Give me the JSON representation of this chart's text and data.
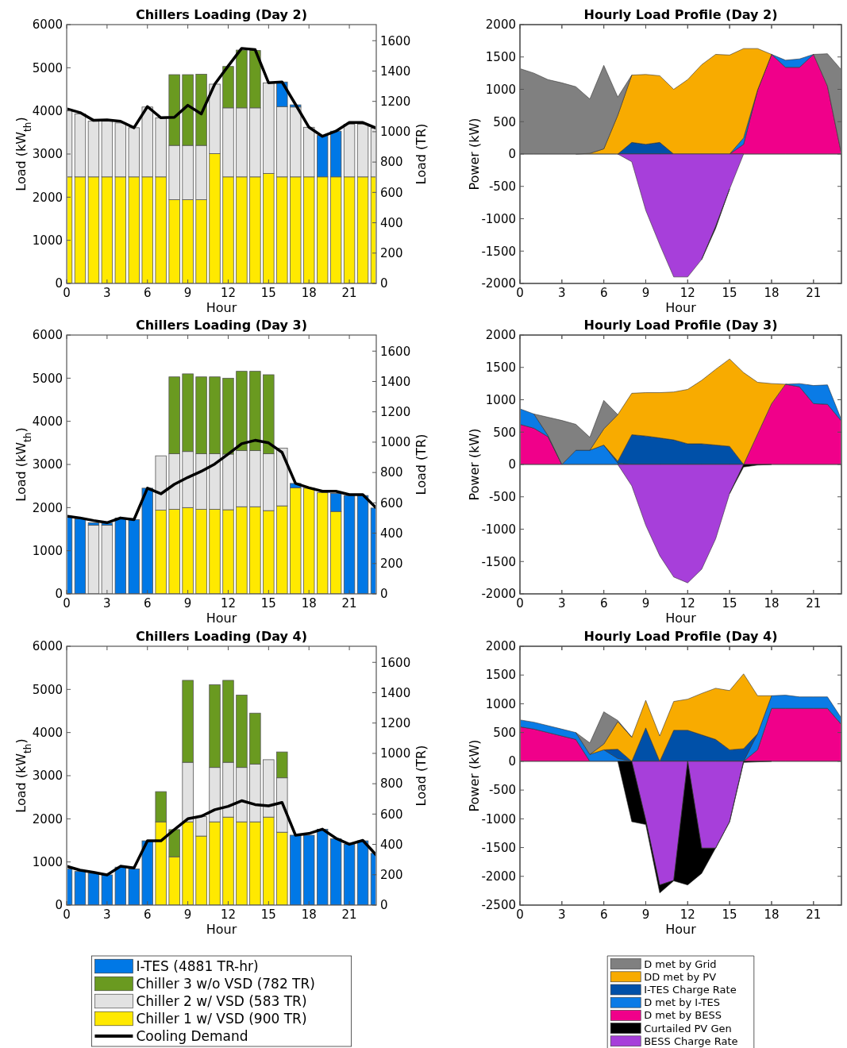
{
  "chart_data": [
    {
      "type": "bar",
      "title": "Chillers Loading (Day 2)",
      "xlabel": "Hour",
      "ylabel": "Load (kW$_{th}$)",
      "y2label": "Load (TR)",
      "stacked": true,
      "x": [
        0,
        1,
        2,
        3,
        4,
        5,
        6,
        7,
        8,
        9,
        10,
        11,
        12,
        13,
        14,
        15,
        16,
        17,
        18,
        19,
        20,
        21,
        22,
        23
      ],
      "xlim": [
        0,
        23
      ],
      "xticks": [
        0,
        3,
        6,
        9,
        12,
        15,
        18,
        21
      ],
      "ylim": [
        0,
        6000
      ],
      "yticks": [
        0,
        1000,
        2000,
        3000,
        4000,
        5000,
        6000
      ],
      "y2lim": [
        0,
        1706
      ],
      "y2ticks": [
        0,
        200,
        400,
        600,
        800,
        1000,
        1200,
        1400,
        1600
      ],
      "series": [
        {
          "color": "#ffe900",
          "values": [
            2470,
            2470,
            2470,
            2470,
            2470,
            2470,
            2470,
            2470,
            1940,
            1940,
            1940,
            3010,
            2470,
            2470,
            2470,
            2550,
            2470,
            2470,
            2470,
            2470,
            2470,
            2470,
            2470,
            2470
          ]
        },
        {
          "color": "#e2e2e2",
          "values": [
            1550,
            1460,
            1290,
            1290,
            1250,
            1140,
            1620,
            1370,
            1260,
            1260,
            1260,
            1610,
            1600,
            1600,
            1600,
            2100,
            1630,
            1620,
            1150,
            null,
            null,
            1220,
            1220,
            1130
          ]
        },
        {
          "color": "#6a9a20",
          "values": [
            null,
            null,
            null,
            null,
            null,
            null,
            null,
            null,
            1640,
            1640,
            1650,
            null,
            960,
            1340,
            1330,
            null,
            null,
            null,
            null,
            null,
            null,
            null,
            null,
            null
          ]
        },
        {
          "color": "#0078e6",
          "values": [
            null,
            null,
            null,
            null,
            null,
            null,
            null,
            null,
            null,
            null,
            null,
            null,
            null,
            null,
            null,
            null,
            570,
            50,
            null,
            960,
            1060,
            null,
            null,
            null
          ]
        },
        {
          "type": "line",
          "color": "#000000",
          "values": [
            4050,
            3960,
            3780,
            3790,
            3760,
            3610,
            4100,
            3840,
            3850,
            4130,
            3930,
            4620,
            5040,
            5450,
            5420,
            4650,
            4670,
            4150,
            3620,
            3410,
            3530,
            3730,
            3730,
            3600
          ]
        }
      ]
    },
    {
      "type": "area",
      "title": "Hourly Load Profile (Day 2)",
      "xlabel": "Hour",
      "ylabel": "Power (kW)",
      "stacked": true,
      "x": [
        0,
        1,
        2,
        3,
        4,
        5,
        6,
        7,
        8,
        9,
        10,
        11,
        12,
        13,
        14,
        15,
        16,
        17,
        18,
        19,
        20,
        21,
        22,
        23
      ],
      "xlim": [
        0,
        23
      ],
      "xticks": [
        0,
        3,
        6,
        9,
        12,
        15,
        18,
        21
      ],
      "ylim": [
        -2000,
        2000
      ],
      "yticks": [
        0,
        500,
        1000,
        1500,
        2000
      ],
      "series": [
        {
          "color": "#f0008a",
          "values": [
            null,
            null,
            null,
            null,
            null,
            null,
            null,
            null,
            null,
            null,
            null,
            null,
            null,
            null,
            null,
            0,
            150,
            990,
            1540,
            1340,
            1340,
            1540,
            1050,
            0
          ]
        },
        {
          "color": "#0a7be6",
          "values": [
            null,
            null,
            null,
            null,
            null,
            null,
            null,
            null,
            null,
            null,
            null,
            null,
            null,
            null,
            null,
            0,
            100,
            0,
            0,
            110,
            130,
            0,
            null,
            null
          ]
        },
        {
          "color": "#0050a8",
          "values": [
            null,
            null,
            null,
            null,
            null,
            null,
            null,
            0,
            180,
            150,
            180,
            0,
            null,
            null,
            null,
            null,
            null,
            null,
            null,
            null,
            null,
            null,
            null,
            null
          ]
        },
        {
          "color": "#f8ab00",
          "values": [
            null,
            null,
            null,
            null,
            0,
            10,
            80,
            600,
            1040,
            1080,
            1030,
            1000,
            1150,
            1380,
            1540,
            1530,
            1380,
            640,
            0,
            null,
            null,
            null,
            null,
            null
          ]
        },
        {
          "color": "#808080",
          "values": [
            1320,
            1250,
            1150,
            1100,
            1040,
            840,
            1290,
            280,
            0,
            null,
            null,
            null,
            null,
            null,
            null,
            null,
            null,
            null,
            null,
            null,
            null,
            0,
            500,
            1300
          ]
        }
      ]
    },
    {
      "type": "area",
      "stacked": true,
      "tick_labels": "y",
      "x": [
        7,
        8,
        9,
        10,
        11,
        12,
        13,
        14,
        15,
        16
      ],
      "xlim": [
        0,
        23
      ],
      "xticks": [
        0,
        3,
        6,
        9,
        12,
        15,
        18,
        21
      ],
      "ylim": [
        -2000,
        2000
      ],
      "yticks": [
        -2000,
        -1500,
        -1000,
        -500
      ],
      "series": [
        {
          "color": "#a73fda",
          "values": [
            0,
            -120,
            -870,
            -1400,
            -1900,
            -1900,
            -1630,
            -1120,
            -540,
            0
          ]
        },
        {
          "color": "#000000",
          "values": [
            null,
            null,
            null,
            null,
            null,
            null,
            0,
            -30,
            0,
            null
          ]
        }
      ]
    },
    {
      "type": "bar",
      "title": "Chillers Loading (Day 3)",
      "xlabel": "Hour",
      "ylabel": "Load (kW$_{th}$)",
      "y2label": "Load (TR)",
      "stacked": true,
      "x": [
        0,
        1,
        2,
        3,
        4,
        5,
        6,
        7,
        8,
        9,
        10,
        11,
        12,
        13,
        14,
        15,
        16,
        17,
        18,
        19,
        20,
        21,
        22,
        23
      ],
      "xlim": [
        0,
        23
      ],
      "xticks": [
        0,
        3,
        6,
        9,
        12,
        15,
        18,
        21
      ],
      "ylim": [
        0,
        6000
      ],
      "yticks": [
        0,
        1000,
        2000,
        3000,
        4000,
        5000,
        6000
      ],
      "y2lim": [
        0,
        1706
      ],
      "y2ticks": [
        0,
        200,
        400,
        600,
        800,
        1000,
        1200,
        1400,
        1600
      ],
      "series": [
        {
          "color": "#ffe900",
          "values": [
            null,
            null,
            null,
            null,
            null,
            null,
            null,
            1940,
            1960,
            2000,
            1960,
            1960,
            1950,
            2020,
            2020,
            1930,
            2040,
            2460,
            2450,
            2350,
            1910,
            null,
            null,
            null
          ]
        },
        {
          "color": "#e2e2e2",
          "values": [
            null,
            null,
            1590,
            1590,
            null,
            null,
            null,
            1260,
            1290,
            1300,
            1290,
            1290,
            1290,
            1300,
            1300,
            1320,
            1340,
            null,
            null,
            null,
            null,
            null,
            null,
            null
          ]
        },
        {
          "color": "#6a9a20",
          "values": [
            null,
            null,
            null,
            null,
            null,
            null,
            null,
            null,
            1780,
            1800,
            1780,
            1780,
            1760,
            1840,
            1840,
            1830,
            null,
            null,
            null,
            null,
            null,
            null,
            null,
            null
          ]
        },
        {
          "color": "#0078e6",
          "values": [
            1800,
            1740,
            60,
            50,
            1760,
            1720,
            2450,
            null,
            null,
            null,
            null,
            null,
            null,
            null,
            null,
            null,
            null,
            100,
            null,
            null,
            420,
            2280,
            2280,
            1990
          ]
        },
        {
          "type": "line",
          "color": "#000000",
          "values": [
            1800,
            1760,
            1700,
            1650,
            1760,
            1720,
            2450,
            2320,
            2540,
            2700,
            2840,
            3010,
            3240,
            3480,
            3560,
            3500,
            3280,
            2560,
            2460,
            2380,
            2380,
            2300,
            2300,
            1990
          ]
        }
      ]
    },
    {
      "type": "area",
      "title": "Hourly Load Profile (Day 3)",
      "xlabel": "Hour",
      "ylabel": "Power (kW)",
      "stacked": true,
      "x": [
        0,
        1,
        2,
        3,
        4,
        5,
        6,
        7,
        8,
        9,
        10,
        11,
        12,
        13,
        14,
        15,
        16,
        17,
        18,
        19,
        20,
        21,
        22,
        23
      ],
      "xlim": [
        0,
        23
      ],
      "xticks": [
        0,
        3,
        6,
        9,
        12,
        15,
        18,
        21
      ],
      "ylim": [
        -2000,
        2000
      ],
      "yticks": [
        0,
        500,
        1000,
        1500,
        2000
      ],
      "series": [
        {
          "color": "#f0008a",
          "values": [
            620,
            560,
            430,
            0,
            null,
            null,
            null,
            null,
            null,
            null,
            null,
            null,
            null,
            null,
            null,
            null,
            0,
            470,
            940,
            1240,
            1200,
            940,
            930,
            670
          ]
        },
        {
          "color": "#0a7be6",
          "values": [
            240,
            220,
            20,
            0,
            220,
            220,
            300,
            20,
            0,
            null,
            null,
            null,
            null,
            null,
            null,
            null,
            null,
            null,
            null,
            0,
            50,
            280,
            300,
            20
          ]
        },
        {
          "color": "#0050a8",
          "values": [
            null,
            null,
            null,
            null,
            null,
            null,
            0,
            30,
            460,
            440,
            410,
            380,
            320,
            320,
            300,
            280,
            0,
            null,
            null,
            null,
            null,
            null,
            null,
            null
          ]
        },
        {
          "color": "#f8ab00",
          "values": [
            null,
            null,
            null,
            null,
            null,
            0,
            250,
            720,
            640,
            670,
            700,
            740,
            840,
            980,
            1170,
            1350,
            1420,
            800,
            310,
            0,
            null,
            null,
            null,
            null
          ]
        },
        {
          "color": "#808080",
          "values": [
            null,
            0,
            280,
            680,
            400,
            200,
            440,
            0,
            null,
            null,
            null,
            null,
            null,
            null,
            null,
            null,
            null,
            null,
            null,
            null,
            null,
            null,
            null,
            null
          ]
        }
      ]
    },
    {
      "type": "area",
      "stacked": true,
      "tick_labels": "y",
      "x": [
        7,
        8,
        9,
        10,
        11,
        12,
        13,
        14,
        15,
        16,
        17,
        18
      ],
      "xlim": [
        0,
        23
      ],
      "xticks": [
        0,
        3,
        6,
        9,
        12,
        15,
        18,
        21
      ],
      "ylim": [
        -2000,
        2000
      ],
      "yticks": [
        -2000,
        -1500,
        -1000,
        -500
      ],
      "series": [
        {
          "color": "#a73fda",
          "values": [
            0,
            -330,
            -940,
            -1410,
            -1740,
            -1830,
            -1620,
            -1150,
            -450,
            0,
            null,
            null
          ]
        },
        {
          "color": "#000000",
          "values": [
            null,
            null,
            null,
            null,
            null,
            null,
            null,
            null,
            0,
            -40,
            -10,
            0
          ]
        }
      ]
    },
    {
      "type": "bar",
      "title": "Chillers Loading (Day 4)",
      "xlabel": "Hour",
      "ylabel": "Load (kW$_{th}$)",
      "y2label": "Load (TR)",
      "stacked": true,
      "legend": "bottom",
      "x": [
        0,
        1,
        2,
        3,
        4,
        5,
        6,
        7,
        8,
        9,
        10,
        11,
        12,
        13,
        14,
        15,
        16,
        17,
        18,
        19,
        20,
        21,
        22,
        23
      ],
      "xlim": [
        0,
        23
      ],
      "xticks": [
        0,
        3,
        6,
        9,
        12,
        15,
        18,
        21
      ],
      "ylim": [
        0,
        6000
      ],
      "yticks": [
        0,
        1000,
        2000,
        3000,
        4000,
        5000,
        6000
      ],
      "y2lim": [
        0,
        1706
      ],
      "y2ticks": [
        0,
        200,
        400,
        600,
        800,
        1000,
        1200,
        1400,
        1600
      ],
      "series": [
        {
          "name": "Chiller 1 w/ VSD (900 TR)",
          "color": "#ffe900",
          "values": [
            null,
            null,
            null,
            null,
            null,
            null,
            null,
            1930,
            1120,
            1930,
            1600,
            1930,
            2040,
            1930,
            1930,
            2040,
            1690,
            null,
            null,
            null,
            null,
            null,
            null,
            null
          ]
        },
        {
          "name": "Chiller 2 w/ VSD (583 TR)",
          "color": "#e2e2e2",
          "values": [
            null,
            null,
            null,
            null,
            null,
            null,
            null,
            null,
            null,
            1380,
            450,
            1260,
            1270,
            1260,
            1340,
            1330,
            1260,
            null,
            null,
            null,
            null,
            null,
            null,
            null
          ]
        },
        {
          "name": "Chiller 3 w/o VSD (782 TR)",
          "color": "#6a9a20",
          "values": [
            null,
            null,
            null,
            null,
            null,
            null,
            null,
            700,
            630,
            1900,
            null,
            1920,
            1900,
            1680,
            1180,
            null,
            600,
            null,
            null,
            null,
            null,
            null,
            null,
            null
          ]
        },
        {
          "name": "I-TES (4881 TR-hr)",
          "color": "#0078e6",
          "values": [
            840,
            780,
            740,
            700,
            880,
            840,
            1490,
            null,
            null,
            null,
            null,
            null,
            null,
            null,
            null,
            null,
            null,
            1620,
            1620,
            1760,
            1540,
            1410,
            1490,
            1200
          ]
        },
        {
          "name": "Cooling Demand",
          "type": "line",
          "color": "#000000",
          "values": [
            900,
            810,
            760,
            700,
            900,
            860,
            1490,
            1490,
            1750,
            2000,
            2060,
            2210,
            2290,
            2420,
            2330,
            2300,
            2380,
            1620,
            1660,
            1760,
            1550,
            1410,
            1500,
            1160
          ]
        }
      ]
    },
    {
      "type": "area",
      "title": "Hourly Load Profile (Day 4)",
      "xlabel": "Hour",
      "ylabel": "Power (kW)",
      "stacked": true,
      "legend": "bottom",
      "x": [
        0,
        1,
        2,
        3,
        4,
        5,
        6,
        7,
        8,
        9,
        10,
        11,
        12,
        13,
        14,
        15,
        16,
        17,
        18,
        19,
        20,
        21,
        22,
        23
      ],
      "xlim": [
        0,
        23
      ],
      "xticks": [
        0,
        3,
        6,
        9,
        12,
        15,
        18,
        21
      ],
      "ylim": [
        -2500,
        2000
      ],
      "yticks": [
        0,
        500,
        1000,
        1500,
        2000
      ],
      "series": [
        {
          "name": "D met by BESS",
          "color": "#f0008a",
          "values": [
            600,
            560,
            500,
            440,
            380,
            0,
            null,
            null,
            null,
            null,
            null,
            null,
            null,
            null,
            null,
            null,
            0,
            200,
            920,
            920,
            920,
            920,
            920,
            640
          ]
        },
        {
          "name": "D met by I-TES",
          "color": "#0a7be6",
          "values": [
            120,
            120,
            120,
            120,
            120,
            120,
            200,
            50,
            0,
            null,
            null,
            null,
            null,
            null,
            null,
            null,
            0,
            280,
            220,
            230,
            200,
            200,
            200,
            110
          ]
        },
        {
          "name": "I-TES Charge Rate",
          "color": "#0050a8",
          "values": [
            null,
            null,
            null,
            null,
            null,
            null,
            0,
            160,
            0,
            580,
            0,
            540,
            540,
            460,
            380,
            200,
            220,
            0,
            null,
            null,
            null,
            null,
            null,
            null
          ]
        },
        {
          "name": "DD met by PV",
          "color": "#f8ab00",
          "values": [
            null,
            null,
            null,
            null,
            null,
            0,
            100,
            480,
            420,
            480,
            440,
            500,
            540,
            720,
            890,
            1030,
            1300,
            660,
            0,
            null,
            null,
            null,
            null,
            null
          ]
        },
        {
          "name": "D met by Grid",
          "color": "#808080",
          "values": [
            null,
            null,
            null,
            null,
            0,
            200,
            560,
            20,
            0,
            null,
            null,
            null,
            null,
            null,
            null,
            null,
            null,
            null,
            null,
            null,
            null,
            null,
            null,
            null
          ]
        }
      ]
    },
    {
      "type": "area",
      "stacked": true,
      "tick_labels": "y",
      "legend": "bottom",
      "x": [
        7,
        8,
        9,
        10,
        11,
        12,
        13,
        14,
        15,
        16,
        17,
        18
      ],
      "xlim": [
        0,
        23
      ],
      "xticks": [
        0,
        3,
        6,
        9,
        12,
        15,
        18,
        21
      ],
      "ylim": [
        -2500,
        2000
      ],
      "yticks": [
        -2500,
        -2000,
        -1500,
        -1000,
        -500
      ],
      "series": [
        {
          "name": "BESS Charge Rate",
          "color": "#a73fda",
          "values": [
            null,
            0,
            -1020,
            -2150,
            -2070,
            0,
            -1510,
            -1510,
            -1050,
            0,
            null,
            null
          ]
        },
        {
          "name": "Curtailed PV Gen",
          "color": "#000000",
          "values": [
            0,
            -1050,
            -80,
            -140,
            -10,
            -2150,
            -440,
            0,
            0,
            -20,
            -10,
            0
          ]
        }
      ]
    }
  ]
}
